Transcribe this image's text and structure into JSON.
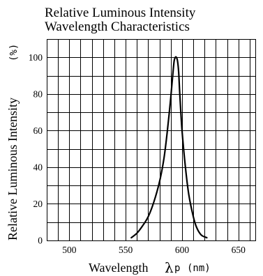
{
  "chart_data": {
    "type": "line",
    "title": [
      "Relative Luminous Intensity",
      "Wavelength Characteristics"
    ],
    "xlabel": {
      "main": "Wavelength",
      "symbol": "λ",
      "sub": "p",
      "unit": "(nm)"
    },
    "ylabel": {
      "main": "Relative Luminous Intensity",
      "unit": "(%)"
    },
    "xlim": [
      480,
      665
    ],
    "ylim": [
      0,
      110
    ],
    "grid": true,
    "legend": "none",
    "x_ticks": [
      {
        "value": 500,
        "label": "500"
      },
      {
        "value": 550,
        "label": "550"
      },
      {
        "value": 600,
        "label": "600"
      },
      {
        "value": 650,
        "label": "650"
      }
    ],
    "y_ticks": [
      {
        "value": 0,
        "label": "0"
      },
      {
        "value": 20,
        "label": "20"
      },
      {
        "value": 40,
        "label": "40"
      },
      {
        "value": 60,
        "label": "60"
      },
      {
        "value": 80,
        "label": "80"
      },
      {
        "value": 100,
        "label": "100"
      }
    ],
    "x_grid": [
      490,
      500,
      510,
      520,
      530,
      540,
      550,
      560,
      570,
      580,
      590,
      600,
      610,
      620,
      630,
      640,
      650,
      660
    ],
    "y_grid": [
      10,
      20,
      30,
      40,
      50,
      60,
      70,
      80,
      90,
      100
    ],
    "series": [
      {
        "x": [
          555,
          560,
          565,
          570,
          575,
          580,
          584,
          587,
          590,
          592,
          593,
          594,
          595,
          596,
          597,
          598,
          600,
          603,
          606,
          610,
          613,
          617,
          622
        ],
        "y": [
          1.5,
          4,
          8,
          13,
          21,
          32,
          45,
          60,
          78,
          92,
          98,
          100,
          100,
          98,
          92,
          80,
          60,
          40,
          25,
          13,
          7,
          3,
          1.5
        ]
      }
    ]
  }
}
